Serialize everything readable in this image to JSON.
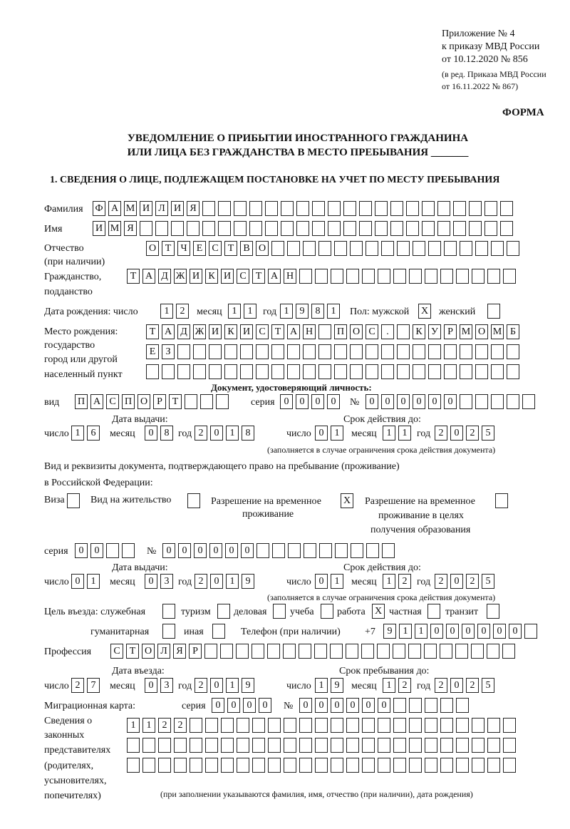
{
  "header": {
    "appendix": "Приложение № 4",
    "order": "к приказу МВД России",
    "order_date": "от 10.12.2020 № 856",
    "revision_1": "(в ред. Приказа МВД России",
    "revision_2": "от 16.11.2022 № 867)",
    "form_label": "ФОРМА",
    "title_1": "УВЕДОМЛЕНИЕ О ПРИБЫТИИ ИНОСТРАННОГО ГРАЖДАНИНА",
    "title_2": "ИЛИ ЛИЦА БЕЗ ГРАЖДАНСТВА В МЕСТО ПРЕБЫВАНИЯ _______",
    "section_1": "1. СВЕДЕНИЯ О ЛИЦЕ, ПОДЛЕЖАЩЕМ ПОСТАНОВКЕ НА УЧЕТ ПО МЕСТУ ПРЕБЫВАНИЯ"
  },
  "labels": {
    "surname": "Фамилия",
    "name": "Имя",
    "patronymic": "Отчество",
    "patronymic_note": "(при наличии)",
    "citizenship_1": "Гражданство,",
    "citizenship_2": "подданство",
    "birth_date": "Дата рождения:   число",
    "day": "число",
    "month": "месяц",
    "year": "год",
    "sex": "Пол: мужской",
    "female": "женский",
    "birthplace_1": "Место рождения:",
    "birthplace_2": "государство",
    "birthplace_3": "город или другой",
    "birthplace_4": "населенный пункт",
    "id_doc": "Документ, удостоверяющий личность:",
    "doc_type": "вид",
    "series": "серия",
    "number": "№",
    "issue_date": "Дата выдачи:",
    "valid_until": "Срок действия до:",
    "validity_note": "(заполняется в случае ограничения срока действия документа)",
    "right_doc_1": "Вид и реквизиты документа, подтверждающего право на пребывание (проживание)",
    "right_doc_2": "в Российской Федерации:",
    "visa": "Виза",
    "residence_permit": "Вид на жительство",
    "temp_residence_1": "Разрешение на временное",
    "temp_residence_2": "проживание",
    "temp_edu_1": "Разрешение на временное",
    "temp_edu_2": "проживание в целях",
    "temp_edu_3": "получения образования",
    "purpose": "Цель въезда: служебная",
    "tourism": "туризм",
    "business": "деловая",
    "study": "учеба",
    "work": "работа",
    "private": "частная",
    "transit": "транзит",
    "humanitarian": "гуманитарная",
    "other": "иная",
    "phone": "Телефон (при наличии)",
    "phone_prefix": "+7",
    "profession": "Профессия",
    "entry_date": "Дата въезда:",
    "stay_until": "Срок пребывания до:",
    "migration_card": "Миграционная карта:",
    "reps_1": "Сведения о",
    "reps_2": "законных",
    "reps_3": "представителях",
    "reps_4": "(родителях,",
    "reps_5": "усыновителях,",
    "reps_6": "попечителях)",
    "reps_note": "(при заполнении указываются фамилия, имя, отчество (при наличии), дата рождения)"
  },
  "values": {
    "surname": "ФАМИЛИЯ",
    "name": "ИМЯ",
    "patronymic": "ОТЧЕСТВО",
    "citizenship": "ТАДЖИКИСТАН",
    "birth_day": "12",
    "birth_month": "11",
    "birth_year": "1981",
    "sex_male": "X",
    "sex_female": "",
    "birthplace_1": "ТАДЖИКИСТАН ПОС. КУРМОМБ",
    "birthplace_2": "ЕЗ",
    "birthplace_3": "",
    "doc_type": "ПАСПОРТ",
    "doc_series": "0000",
    "doc_number": "000000",
    "doc_issue_day": "16",
    "doc_issue_month": "08",
    "doc_issue_year": "2018",
    "doc_valid_day": "01",
    "doc_valid_month": "11",
    "doc_valid_year": "2025",
    "visa": "",
    "residence_permit": "",
    "temp_residence": "X",
    "temp_edu": "",
    "right_series": "00",
    "right_number": "000000",
    "right_issue_day": "01",
    "right_issue_month": "03",
    "right_issue_year": "2019",
    "right_valid_day": "01",
    "right_valid_month": "12",
    "right_valid_year": "2025",
    "purpose_service": "",
    "purpose_tourism": "",
    "purpose_business": "",
    "purpose_study": "",
    "purpose_work": "X",
    "purpose_private": "",
    "purpose_transit": "",
    "purpose_humanitarian": "",
    "purpose_other": "",
    "phone": "911000000",
    "profession": "СТОЛЯР",
    "entry_day": "27",
    "entry_month": "03",
    "entry_year": "2019",
    "stay_day": "19",
    "stay_month": "12",
    "stay_year": "2025",
    "mig_series": "0000",
    "mig_number": "000000",
    "reps_1": "1122",
    "reps_2": "",
    "reps_3": ""
  }
}
